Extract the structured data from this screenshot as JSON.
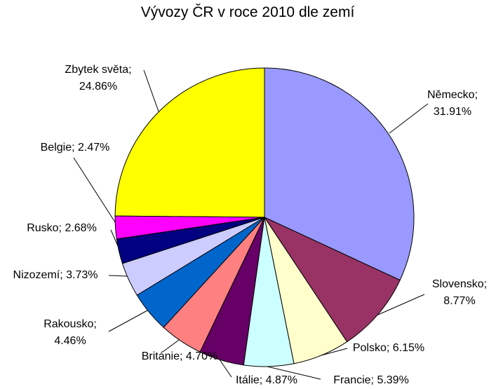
{
  "chart_data": {
    "type": "pie",
    "title": "Vývozy ČR v roce 2010 dle zemí",
    "values": [
      31.91,
      8.77,
      6.15,
      5.39,
      4.87,
      4.7,
      4.46,
      3.73,
      2.68,
      2.47,
      24.86
    ],
    "value_labels": [
      "Německo;\n31.91%",
      "Slovensko;\n8.77%",
      "Polsko; 6.15%",
      "Francie; 5.39%",
      "Itálie; 4.87%",
      "Británie; 4.70%",
      "Rakousko;\n4.46%",
      "Nizozemí; 3.73%",
      "Rusko; 2.68%",
      "Belgie; 2.47%",
      "Zbytek světa;\n24.86%"
    ],
    "colors": [
      "#9999ff",
      "#993366",
      "#ffffcc",
      "#ccffff",
      "#660066",
      "#ff8080",
      "#0066cc",
      "#ccccff",
      "#000080",
      "#ff00ff",
      "#ffff00"
    ]
  }
}
